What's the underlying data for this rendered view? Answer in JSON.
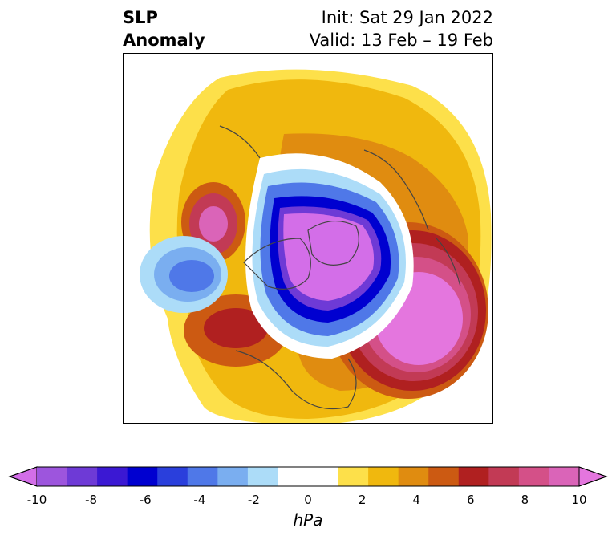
{
  "title": {
    "left_line1": "SLP",
    "left_line2": "Anomaly",
    "init": "Init: Sat 29 Jan 2022",
    "valid": "Valid: 13 Feb – 19 Feb"
  },
  "colorbar": {
    "units": "hPa",
    "levels": [
      -10,
      -9,
      -8,
      -7,
      -6,
      -5,
      -4,
      -3,
      -2,
      -1,
      0,
      1,
      2,
      3,
      4,
      5,
      6,
      7,
      8,
      9,
      10
    ],
    "colors": [
      "#d36ee8",
      "#9d55dd",
      "#6e3ad6",
      "#3b18d3",
      "#0000d0",
      "#2a3fdc",
      "#4f78e8",
      "#7aaef0",
      "#acdcf8",
      "#ffffff",
      "#ffffff",
      "#fde04a",
      "#f0b80e",
      "#e08c10",
      "#cc5a12",
      "#b02020",
      "#c23a55",
      "#d45088",
      "#da64b8",
      "#e476de"
    ],
    "tick_labels": [
      "-10",
      "-8",
      "-6",
      "-4",
      "-2",
      "0",
      "2",
      "4",
      "6",
      "8",
      "10"
    ]
  },
  "map": {
    "projection": "north polar stereographic",
    "features": [
      "Positive anomaly over North Atlantic",
      "Negative anomaly over Arctic/Greenland",
      "Negative anomaly over North Pacific"
    ]
  }
}
